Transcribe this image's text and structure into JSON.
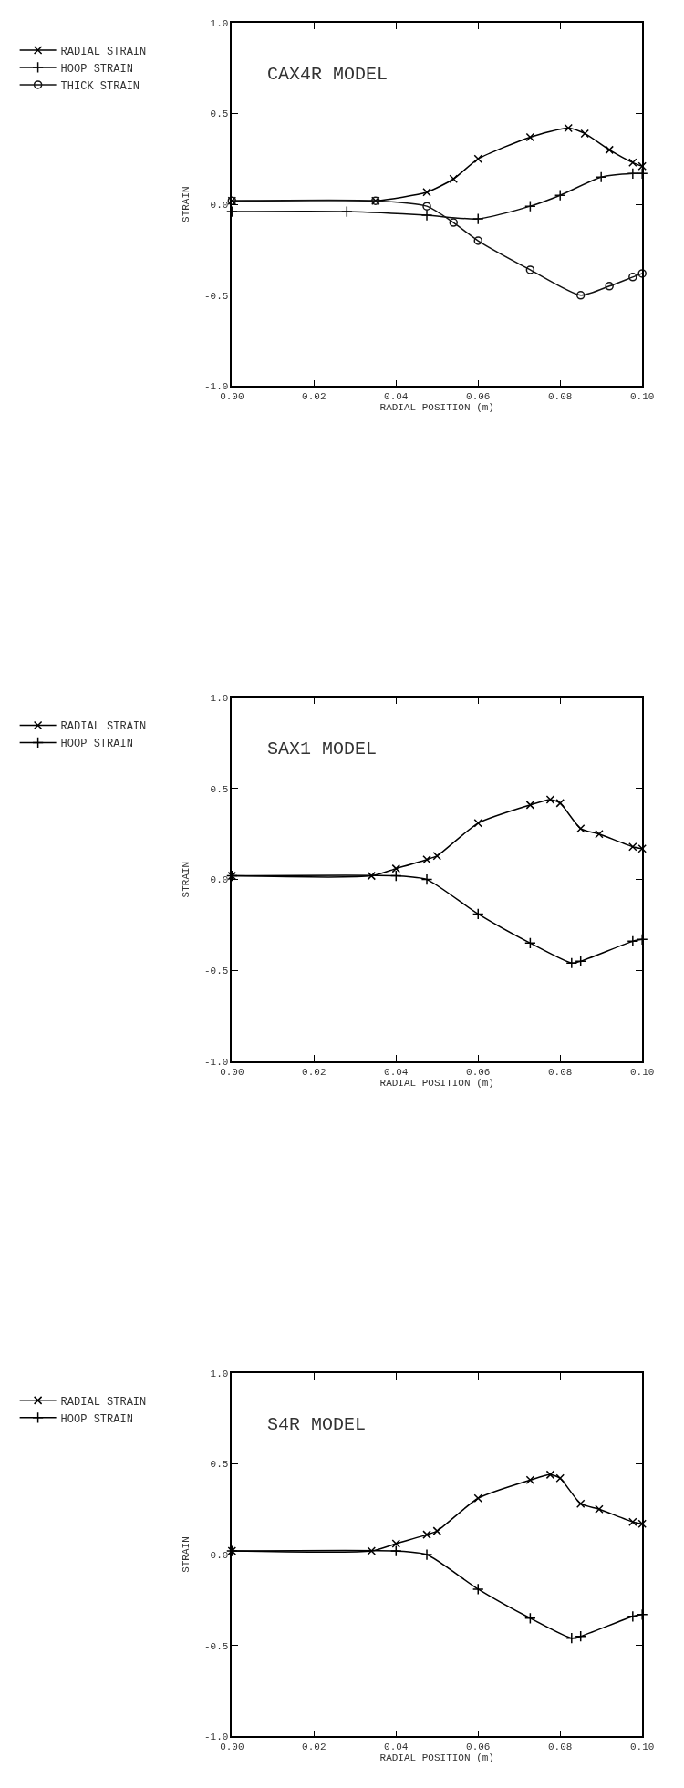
{
  "chart_data": [
    {
      "type": "line",
      "title": "CAX4R MODEL",
      "xlabel": "RADIAL POSITION (m)",
      "ylabel": "STRAIN",
      "xlim": [
        0,
        0.1
      ],
      "ylim": [
        -1,
        1
      ],
      "xticks": [
        {
          "value": 0,
          "label": "0.00"
        },
        {
          "value": 0.02,
          "label": "0.02"
        },
        {
          "value": 0.04,
          "label": "0.04"
        },
        {
          "value": 0.06,
          "label": "0.06"
        },
        {
          "value": 0.08,
          "label": "0.08"
        },
        {
          "value": 0.1,
          "label": "0.10"
        }
      ],
      "yticks": [
        {
          "value": -1,
          "label": "-1.0"
        },
        {
          "value": -0.5,
          "label": "-0.5"
        },
        {
          "value": 0,
          "label": "0.0"
        },
        {
          "value": 0.5,
          "label": "0.5"
        },
        {
          "value": 1,
          "label": "1.0"
        }
      ],
      "grid": false,
      "legend": "top left",
      "line_style": "solid",
      "series": [
        {
          "name": "RADIAL STRAIN",
          "color": "#000000",
          "marker": "cross",
          "x": [
            0,
            0.035,
            0.0475,
            0.054,
            0.06,
            0.0727,
            0.082,
            0.086,
            0.092,
            0.0977,
            0.1
          ],
          "values": [
            0.02,
            0.02,
            0.067,
            0.14,
            0.25,
            0.37,
            0.42,
            0.39,
            0.3,
            0.23,
            0.21
          ]
        },
        {
          "name": "HOOP STRAIN",
          "color": "#0a0a0a",
          "marker": "plus",
          "x": [
            0,
            0.028,
            0.0475,
            0.06,
            0.0727,
            0.08,
            0.09,
            0.0977,
            0.1
          ],
          "values": [
            -0.04,
            -0.04,
            -0.06,
            -0.08,
            -0.01,
            0.05,
            0.15,
            0.17,
            0.17
          ]
        },
        {
          "name": "THICK STRAIN",
          "color": "#141414",
          "marker": "circle",
          "x": [
            0,
            0.035,
            0.0475,
            0.054,
            0.06,
            0.0727,
            0.085,
            0.092,
            0.0977,
            0.1
          ],
          "values": [
            0.02,
            0.02,
            -0.01,
            -0.1,
            -0.2,
            -0.36,
            -0.5,
            -0.45,
            -0.4,
            -0.38
          ]
        }
      ]
    },
    {
      "type": "line",
      "title": "SAX1 MODEL",
      "xlabel": "RADIAL POSITION (m)",
      "ylabel": "STRAIN",
      "xlim": [
        0,
        0.1
      ],
      "ylim": [
        -1,
        1
      ],
      "xticks": [
        {
          "value": 0,
          "label": "0.00"
        },
        {
          "value": 0.02,
          "label": "0.02"
        },
        {
          "value": 0.04,
          "label": "0.04"
        },
        {
          "value": 0.06,
          "label": "0.06"
        },
        {
          "value": 0.08,
          "label": "0.08"
        },
        {
          "value": 0.1,
          "label": "0.10"
        }
      ],
      "yticks": [
        {
          "value": -1,
          "label": "-1.0"
        },
        {
          "value": -0.5,
          "label": "-0.5"
        },
        {
          "value": 0,
          "label": "0.0"
        },
        {
          "value": 0.5,
          "label": "0.5"
        },
        {
          "value": 1,
          "label": "1.0"
        }
      ],
      "grid": false,
      "legend": "top left",
      "line_style": "solid",
      "series": [
        {
          "name": "RADIAL STRAIN",
          "color": "#000000",
          "marker": "cross",
          "x": [
            0,
            0.034,
            0.04,
            0.0475,
            0.05,
            0.06,
            0.0727,
            0.0776,
            0.08,
            0.085,
            0.0895,
            0.0977,
            0.1
          ],
          "values": [
            0.02,
            0.02,
            0.06,
            0.11,
            0.13,
            0.31,
            0.41,
            0.44,
            0.42,
            0.28,
            0.25,
            0.18,
            0.17
          ]
        },
        {
          "name": "HOOP STRAIN",
          "color": "#000000",
          "marker": "plus",
          "x": [
            0,
            0.04,
            0.0475,
            0.06,
            0.0727,
            0.0828,
            0.085,
            0.0977,
            0.1
          ],
          "values": [
            0.02,
            0.02,
            0.0,
            -0.19,
            -0.35,
            -0.46,
            -0.45,
            -0.34,
            -0.33
          ]
        }
      ]
    },
    {
      "type": "line",
      "title": "S4R MODEL",
      "xlabel": "RADIAL POSITION (m)",
      "ylabel": "STRAIN",
      "xlim": [
        0,
        0.1
      ],
      "ylim": [
        -1,
        1
      ],
      "xticks": [
        {
          "value": 0,
          "label": "0.00"
        },
        {
          "value": 0.02,
          "label": "0.02"
        },
        {
          "value": 0.04,
          "label": "0.04"
        },
        {
          "value": 0.06,
          "label": "0.06"
        },
        {
          "value": 0.08,
          "label": "0.08"
        },
        {
          "value": 0.1,
          "label": "0.10"
        }
      ],
      "yticks": [
        {
          "value": -1,
          "label": "-1.0"
        },
        {
          "value": -0.5,
          "label": "-0.5"
        },
        {
          "value": 0,
          "label": "0.0"
        },
        {
          "value": 0.5,
          "label": "0.5"
        },
        {
          "value": 1,
          "label": "1.0"
        }
      ],
      "grid": false,
      "legend": "top left",
      "line_style": "solid",
      "series": [
        {
          "name": "RADIAL STRAIN",
          "color": "#000000",
          "marker": "cross",
          "x": [
            0,
            0.034,
            0.04,
            0.0475,
            0.05,
            0.06,
            0.0727,
            0.0776,
            0.08,
            0.085,
            0.0895,
            0.0977,
            0.1
          ],
          "values": [
            0.02,
            0.02,
            0.06,
            0.11,
            0.13,
            0.31,
            0.41,
            0.44,
            0.42,
            0.28,
            0.25,
            0.18,
            0.17
          ]
        },
        {
          "name": "HOOP STRAIN",
          "color": "#000000",
          "marker": "plus",
          "x": [
            0,
            0.04,
            0.0475,
            0.06,
            0.0727,
            0.0828,
            0.085,
            0.0977,
            0.1
          ],
          "values": [
            0.02,
            0.02,
            0.0,
            -0.19,
            -0.35,
            -0.46,
            -0.45,
            -0.34,
            -0.33
          ]
        }
      ]
    }
  ]
}
